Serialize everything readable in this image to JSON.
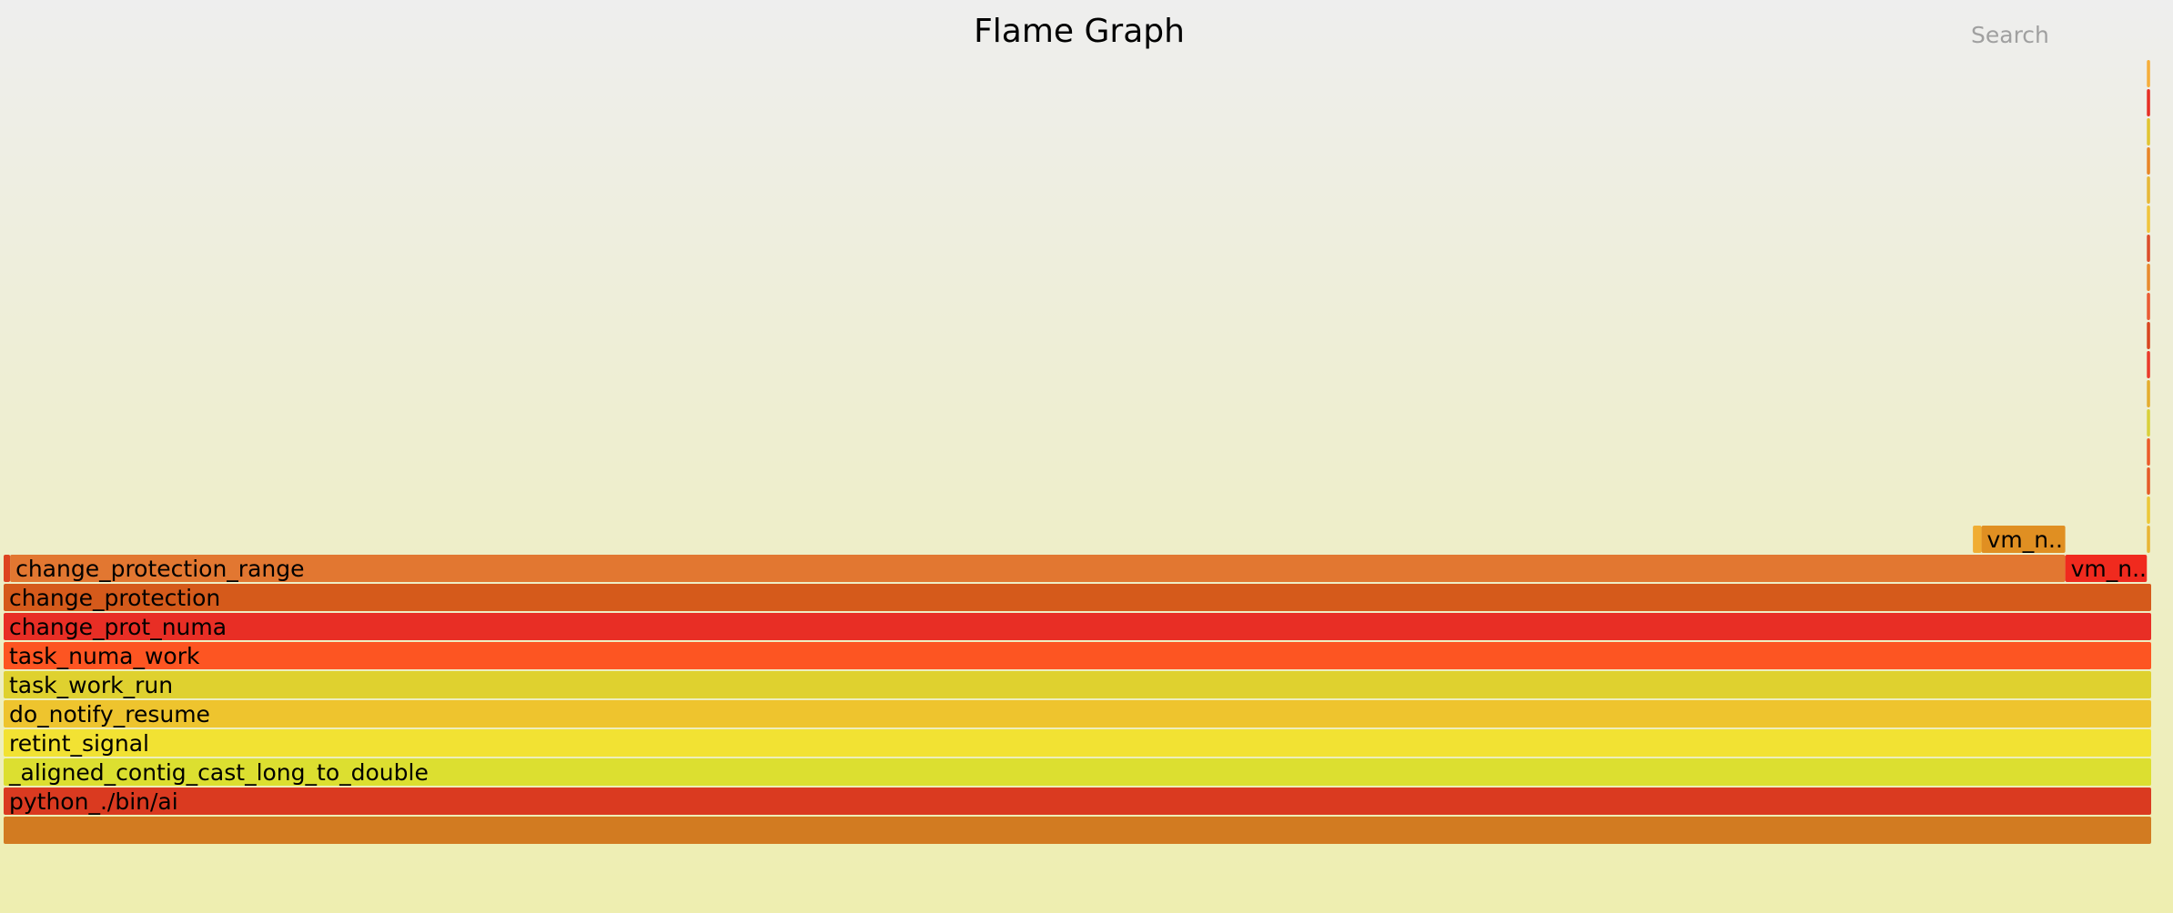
{
  "title": "Flame Graph",
  "search": {
    "label": "Search"
  },
  "chart_data": {
    "type": "flame",
    "title": "Flame Graph",
    "frames": [
      {
        "label": "",
        "depth": 0,
        "start": 0.0,
        "width": 100.0,
        "color": "#d27b21"
      },
      {
        "label": "python_./bin/ai",
        "depth": 1,
        "start": 0.0,
        "width": 100.0,
        "color": "#da3a20"
      },
      {
        "label": "_aligned_contig_cast_long_to_double",
        "depth": 2,
        "start": 0.0,
        "width": 100.0,
        "color": "#dcdf30"
      },
      {
        "label": "retint_signal",
        "depth": 3,
        "start": 0.0,
        "width": 100.0,
        "color": "#f2e233"
      },
      {
        "label": "do_notify_resume",
        "depth": 4,
        "start": 0.0,
        "width": 100.0,
        "color": "#eec42e"
      },
      {
        "label": "task_work_run",
        "depth": 5,
        "start": 0.0,
        "width": 100.0,
        "color": "#dfd12f"
      },
      {
        "label": "task_numa_work",
        "depth": 6,
        "start": 0.0,
        "width": 100.0,
        "color": "#fd5522"
      },
      {
        "label": "change_prot_numa",
        "depth": 7,
        "start": 0.0,
        "width": 100.0,
        "color": "#e82e25"
      },
      {
        "label": "change_protection",
        "depth": 8,
        "start": 0.0,
        "width": 100.0,
        "color": "#d55a1b"
      },
      {
        "label": "",
        "depth": 9,
        "start": 0.0,
        "width": 0.3,
        "color": "#dd4420"
      },
      {
        "label": "change_protection_range",
        "depth": 9,
        "start": 0.3,
        "width": 95.7,
        "color": "#e27731"
      },
      {
        "label": "vm_n..",
        "depth": 9,
        "start": 96.0,
        "width": 3.8,
        "color": "#f02a1e"
      },
      {
        "label": "",
        "depth": 10,
        "start": 91.7,
        "width": 0.4,
        "color": "#f0ad33"
      },
      {
        "label": "vm_n..",
        "depth": 10,
        "start": 92.1,
        "width": 3.9,
        "color": "#e08f22"
      },
      {
        "label": "",
        "depth": 10,
        "start": 99.8,
        "width": 0.15,
        "color": "#e8b535"
      },
      {
        "label": "",
        "depth": 11,
        "start": 99.8,
        "width": 0.15,
        "color": "#ecc838"
      },
      {
        "label": "",
        "depth": 12,
        "start": 99.8,
        "width": 0.15,
        "color": "#e55a28"
      },
      {
        "label": "",
        "depth": 13,
        "start": 99.8,
        "width": 0.15,
        "color": "#eb5b2a"
      },
      {
        "label": "",
        "depth": 14,
        "start": 99.8,
        "width": 0.15,
        "color": "#d9d03a"
      },
      {
        "label": "",
        "depth": 15,
        "start": 99.8,
        "width": 0.15,
        "color": "#e4ad2d"
      },
      {
        "label": "",
        "depth": 16,
        "start": 99.8,
        "width": 0.15,
        "color": "#ea3a2b"
      },
      {
        "label": "",
        "depth": 17,
        "start": 99.8,
        "width": 0.15,
        "color": "#d8451f"
      },
      {
        "label": "",
        "depth": 18,
        "start": 99.8,
        "width": 0.15,
        "color": "#ea5a33"
      },
      {
        "label": "",
        "depth": 19,
        "start": 99.8,
        "width": 0.15,
        "color": "#e88a2e"
      },
      {
        "label": "",
        "depth": 20,
        "start": 99.8,
        "width": 0.15,
        "color": "#dc4d2a"
      },
      {
        "label": "",
        "depth": 21,
        "start": 99.8,
        "width": 0.15,
        "color": "#f0c43c"
      },
      {
        "label": "",
        "depth": 22,
        "start": 99.8,
        "width": 0.15,
        "color": "#e7b838"
      },
      {
        "label": "",
        "depth": 23,
        "start": 99.8,
        "width": 0.15,
        "color": "#e88527"
      },
      {
        "label": "",
        "depth": 24,
        "start": 99.8,
        "width": 0.15,
        "color": "#e1c431"
      },
      {
        "label": "",
        "depth": 25,
        "start": 99.8,
        "width": 0.15,
        "color": "#e62f25"
      },
      {
        "label": "",
        "depth": 26,
        "start": 99.8,
        "width": 0.15,
        "color": "#f6ae3a"
      }
    ]
  }
}
